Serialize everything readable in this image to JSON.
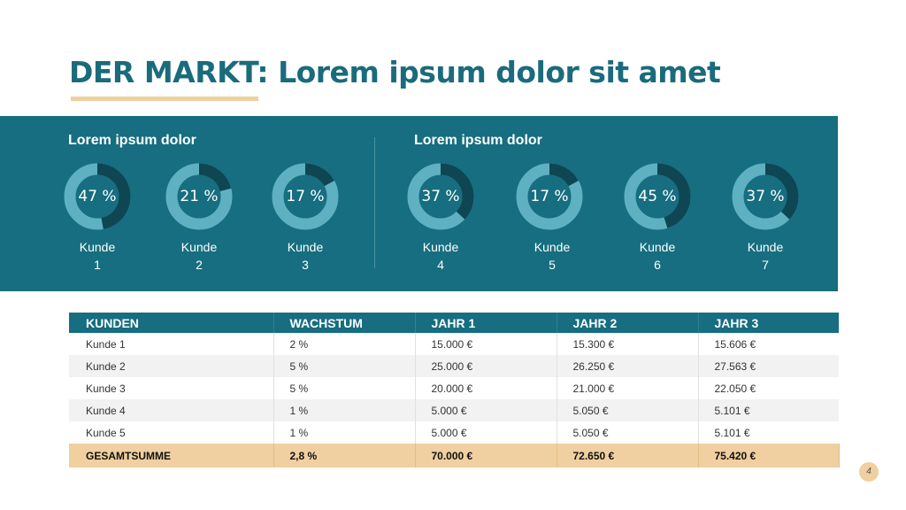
{
  "title": "DER MARKT: Lorem ipsum dolor sit amet",
  "colors": {
    "accent": "#1a6b7c",
    "band": "#166e80",
    "donut_track": "#5fb0c0",
    "donut_fill": "#0e4653",
    "highlight": "#f0cfa0"
  },
  "groups": [
    {
      "title": "Lorem ipsum dolor"
    },
    {
      "title": "Lorem ipsum dolor"
    }
  ],
  "donuts": [
    {
      "value": 47,
      "pct_label": "47 %",
      "label_line1": "Kunde",
      "label_line2": "1"
    },
    {
      "value": 21,
      "pct_label": "21 %",
      "label_line1": "Kunde",
      "label_line2": "2"
    },
    {
      "value": 17,
      "pct_label": "17 %",
      "label_line1": "Kunde",
      "label_line2": "3"
    },
    {
      "value": 37,
      "pct_label": "37 %",
      "label_line1": "Kunde",
      "label_line2": "4"
    },
    {
      "value": 17,
      "pct_label": "17 %",
      "label_line1": "Kunde",
      "label_line2": "5"
    },
    {
      "value": 45,
      "pct_label": "45 %",
      "label_line1": "Kunde",
      "label_line2": "6"
    },
    {
      "value": 37,
      "pct_label": "37 %",
      "label_line1": "Kunde",
      "label_line2": "7"
    }
  ],
  "table": {
    "headers": [
      "KUNDEN",
      "WACHSTUM",
      "JAHR 1",
      "JAHR 2",
      "JAHR 3"
    ],
    "rows": [
      [
        "Kunde 1",
        "2 %",
        "15.000 €",
        "15.300 €",
        "15.606 €"
      ],
      [
        "Kunde 2",
        "5 %",
        "25.000 €",
        "26.250 €",
        "27.563 €"
      ],
      [
        "Kunde 3",
        "5 %",
        "20.000 €",
        "21.000 €",
        "22.050 €"
      ],
      [
        "Kunde 4",
        "1 %",
        "5.000 €",
        "5.050 €",
        "5.101 €"
      ],
      [
        "Kunde 5",
        "1 %",
        "5.000 €",
        "5.050 €",
        "5.101 €"
      ]
    ],
    "total": [
      "GESAMTSUMME",
      "2,8 %",
      "70.000 €",
      "72.650 €",
      "75.420 €"
    ]
  },
  "page_number": "4"
}
